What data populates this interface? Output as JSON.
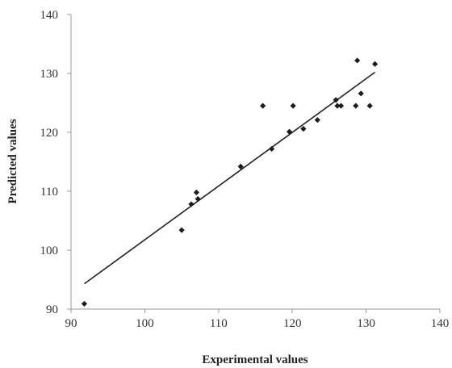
{
  "chart_data": {
    "type": "scatter",
    "title": "",
    "xlabel": "Experimental values",
    "ylabel": "Predicted values",
    "xlim": [
      90,
      140
    ],
    "ylim": [
      90,
      140
    ],
    "x_ticks": [
      "90",
      "100",
      "110",
      "120",
      "130",
      "140"
    ],
    "y_ticks": [
      "90",
      "100",
      "110",
      "120",
      "130",
      "140"
    ],
    "grid": false,
    "legend": "none",
    "colors": {
      "points": "#1c1c1c",
      "fit_line": "#222222",
      "axes": "#9a9a9a"
    },
    "series": [
      {
        "points": [
          {
            "x": 91.8,
            "y": 90.9
          },
          {
            "x": 105.0,
            "y": 103.4
          },
          {
            "x": 106.3,
            "y": 107.8
          },
          {
            "x": 107.0,
            "y": 109.8
          },
          {
            "x": 107.2,
            "y": 108.7
          },
          {
            "x": 113.0,
            "y": 114.2
          },
          {
            "x": 116.0,
            "y": 124.5
          },
          {
            "x": 117.2,
            "y": 117.2
          },
          {
            "x": 119.6,
            "y": 120.1
          },
          {
            "x": 120.1,
            "y": 124.5
          },
          {
            "x": 121.5,
            "y": 120.6
          },
          {
            "x": 123.4,
            "y": 122.1
          },
          {
            "x": 125.9,
            "y": 125.5
          },
          {
            "x": 126.1,
            "y": 124.5
          },
          {
            "x": 126.6,
            "y": 124.5
          },
          {
            "x": 128.6,
            "y": 124.5
          },
          {
            "x": 128.8,
            "y": 132.2
          },
          {
            "x": 129.3,
            "y": 126.6
          },
          {
            "x": 130.5,
            "y": 124.5
          },
          {
            "x": 131.2,
            "y": 131.6
          }
        ]
      }
    ],
    "trendline": {
      "x": [
        91.8,
        131.2
      ],
      "y": [
        94.3,
        130.2
      ]
    }
  }
}
